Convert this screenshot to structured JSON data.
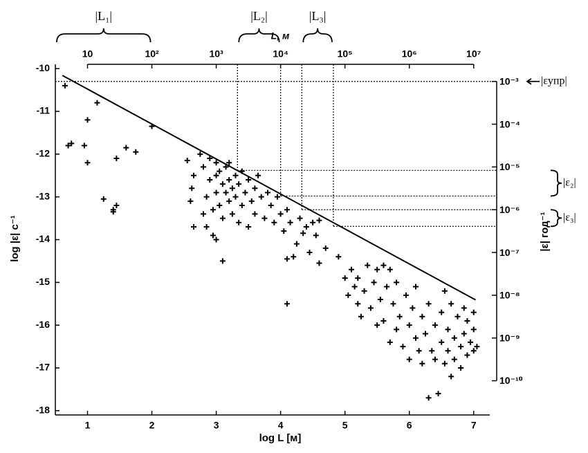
{
  "chart_data": {
    "type": "scatter",
    "x_label": "log L [м]",
    "y_label": "log |ε| c⁻¹",
    "y2_label": "|ε| год⁻¹",
    "x2_label": "L, м",
    "xlim": [
      0.5,
      7.25
    ],
    "ylim": [
      -18.1,
      -9.9
    ],
    "y2lim": [
      -10.8,
      -2.6
    ],
    "xticks": [
      1,
      2,
      3,
      4,
      5,
      6,
      7
    ],
    "yticks": [
      -10,
      -11,
      -12,
      -13,
      -14,
      -15,
      -16,
      -17,
      -18
    ],
    "x2ticks": [
      {
        "value": 1,
        "label": "10"
      },
      {
        "value": 2,
        "label": "10²"
      },
      {
        "value": 3,
        "label": "10³"
      },
      {
        "value": 4,
        "label": "10⁴"
      },
      {
        "value": 5,
        "label": "10⁵"
      },
      {
        "value": 6,
        "label": "10⁶"
      },
      {
        "value": 7,
        "label": "10⁷"
      }
    ],
    "y2ticks": [
      {
        "value": -3,
        "label": "10⁻³"
      },
      {
        "value": -4,
        "label": "10⁻⁴"
      },
      {
        "value": -5,
        "label": "10⁻⁵"
      },
      {
        "value": -6,
        "label": "10⁻⁶"
      },
      {
        "value": -7,
        "label": "10⁻⁷"
      },
      {
        "value": -8,
        "label": "10⁻⁸"
      },
      {
        "value": -9,
        "label": "10⁻⁹"
      },
      {
        "value": -10,
        "label": "10⁻¹⁰"
      }
    ],
    "color": "#000000",
    "trend_line": {
      "x": [
        0.61,
        7.03
      ],
      "y": [
        -10.16,
        -15.41
      ]
    },
    "upper_limit": {
      "y2": -3,
      "label": "|εупр|"
    },
    "reference_lines": [
      {
        "x": 3.33,
        "y2": -5.08
      },
      {
        "x": 4.0,
        "y2": -5.68
      },
      {
        "x": 4.33,
        "y2": -6.0
      },
      {
        "x": 4.82,
        "y2": -6.39
      }
    ],
    "length_ranges": [
      {
        "label": "|L₁|",
        "x": [
          0.5,
          2.0
        ]
      },
      {
        "label": "|L₂|",
        "x": [
          3.33,
          4.0
        ]
      },
      {
        "label": "|L₃|",
        "x": [
          4.33,
          4.82
        ]
      }
    ],
    "strain_ranges": [
      {
        "label": "|ε₂|",
        "y2": [
          -5.08,
          -5.68
        ]
      },
      {
        "label": "|ε₃|",
        "y2": [
          -6.0,
          -6.39
        ]
      }
    ],
    "x": [
      0.65,
      0.7,
      0.75,
      0.95,
      1.0,
      1.0,
      1.15,
      1.25,
      1.4,
      1.4,
      1.45,
      1.45,
      1.6,
      1.75,
      2.0,
      2.55,
      2.65,
      2.62,
      2.6,
      2.65,
      2.75,
      2.8,
      2.8,
      2.85,
      2.85,
      2.9,
      2.9,
      2.95,
      2.95,
      3.0,
      3.0,
      3.0,
      3.0,
      3.05,
      3.05,
      3.1,
      3.1,
      3.1,
      3.15,
      3.15,
      3.2,
      3.2,
      3.2,
      3.25,
      3.25,
      3.3,
      3.3,
      3.35,
      3.35,
      3.4,
      3.4,
      3.45,
      3.5,
      3.5,
      3.55,
      3.6,
      3.6,
      3.65,
      3.7,
      3.75,
      3.8,
      3.85,
      3.9,
      3.95,
      4.0,
      4.05,
      4.1,
      4.1,
      4.1,
      4.15,
      4.2,
      4.25,
      4.3,
      4.35,
      4.4,
      4.45,
      4.5,
      4.55,
      4.6,
      4.6,
      4.7,
      4.9,
      5.0,
      5.05,
      5.1,
      5.15,
      5.2,
      5.2,
      5.25,
      5.3,
      5.35,
      5.4,
      5.45,
      5.5,
      5.5,
      5.55,
      5.6,
      5.6,
      5.65,
      5.7,
      5.7,
      5.75,
      5.8,
      5.8,
      5.85,
      5.9,
      5.95,
      6.0,
      6.0,
      6.05,
      6.1,
      6.1,
      6.15,
      6.2,
      6.2,
      6.25,
      6.3,
      6.3,
      6.35,
      6.4,
      6.4,
      6.45,
      6.5,
      6.5,
      6.55,
      6.55,
      6.6,
      6.6,
      6.65,
      6.65,
      6.7,
      6.7,
      6.75,
      6.8,
      6.8,
      6.85,
      6.85,
      6.9,
      6.9,
      6.95,
      7.0,
      7.0,
      7.05,
      7.0
    ],
    "values": [
      -10.4,
      -11.8,
      -11.75,
      -11.8,
      -11.2,
      -12.2,
      -10.8,
      -13.05,
      -13.3,
      -13.35,
      -13.2,
      -12.1,
      -11.85,
      -11.95,
      -11.35,
      -12.15,
      -12.5,
      -12.8,
      -13.1,
      -13.7,
      -12.0,
      -12.3,
      -13.4,
      -13.0,
      -13.7,
      -12.1,
      -12.6,
      -13.3,
      -13.9,
      -12.2,
      -12.5,
      -12.9,
      -14.0,
      -12.4,
      -13.2,
      -12.7,
      -13.5,
      -14.5,
      -12.3,
      -12.9,
      -12.6,
      -13.1,
      -12.2,
      -12.8,
      -13.4,
      -12.5,
      -13.0,
      -12.7,
      -13.6,
      -12.4,
      -13.2,
      -12.9,
      -12.6,
      -13.7,
      -13.1,
      -12.8,
      -13.4,
      -12.5,
      -13.0,
      -13.5,
      -12.9,
      -13.2,
      -13.6,
      -13.0,
      -13.4,
      -13.8,
      -13.3,
      -14.45,
      -15.5,
      -13.6,
      -14.4,
      -14.1,
      -13.5,
      -13.85,
      -13.7,
      -14.3,
      -13.6,
      -13.9,
      -13.55,
      -14.55,
      -14.2,
      -14.4,
      -14.9,
      -15.3,
      -14.7,
      -15.1,
      -15.5,
      -14.9,
      -15.8,
      -15.2,
      -14.6,
      -15.6,
      -15.0,
      -14.7,
      -16.0,
      -15.4,
      -14.6,
      -15.9,
      -15.1,
      -14.7,
      -16.4,
      -15.5,
      -15.0,
      -16.1,
      -15.8,
      -16.5,
      -15.3,
      -16.0,
      -16.8,
      -15.6,
      -16.3,
      -15.1,
      -16.6,
      -15.8,
      -16.9,
      -16.2,
      -15.5,
      -17.7,
      -16.6,
      -16.0,
      -16.8,
      -17.6,
      -15.7,
      -16.4,
      -15.2,
      -16.9,
      -16.1,
      -16.6,
      -15.5,
      -17.2,
      -16.3,
      -16.8,
      -15.8,
      -16.5,
      -17.0,
      -15.6,
      -16.2,
      -16.7,
      -15.9,
      -16.4,
      -16.1,
      -16.6,
      -16.5,
      -15.7
    ]
  }
}
